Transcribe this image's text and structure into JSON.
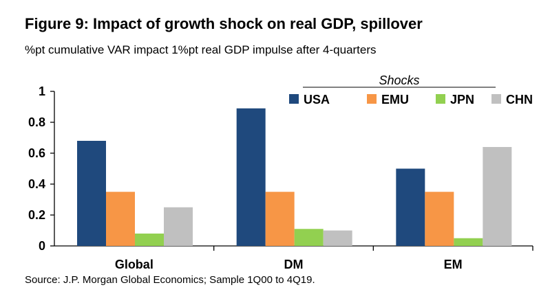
{
  "figure": {
    "title": "Figure 9: Impact of growth shock on real GDP, spillover",
    "subtitle": "%pt cumulative VAR impact 1%pt real GDP impulse after 4-quarters",
    "source": "Source: J.P. Morgan Global Economics; Sample 1Q00 to 4Q19."
  },
  "chart_data": {
    "type": "bar",
    "title": "Figure 9: Impact of growth shock on real GDP, spillover",
    "subtitle": "%pt cumulative VAR impact 1%pt real GDP impulse after 4-quarters",
    "categories": [
      "Global",
      "DM",
      "EM"
    ],
    "series": [
      {
        "name": "USA",
        "color": "#1f497d",
        "values": [
          0.68,
          0.89,
          0.5
        ]
      },
      {
        "name": "EMU",
        "color": "#f79646",
        "values": [
          0.35,
          0.35,
          0.35
        ]
      },
      {
        "name": "JPN",
        "color": "#92d050",
        "values": [
          0.08,
          0.11,
          0.05
        ]
      },
      {
        "name": "CHN",
        "color": "#c0c0c0",
        "values": [
          0.25,
          0.1,
          0.64
        ]
      }
    ],
    "ylim": [
      0,
      1
    ],
    "yticks": [
      "0",
      "0.2",
      "0.4",
      "0.6",
      "0.8",
      "1"
    ],
    "legend_title": "Shocks",
    "legend_position": "top-right",
    "grid": false,
    "xlabel": "",
    "ylabel": ""
  }
}
